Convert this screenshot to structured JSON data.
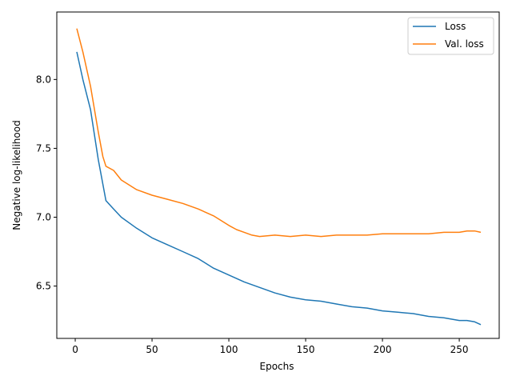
{
  "chart_data": {
    "type": "line",
    "title": "",
    "xlabel": "Epochs",
    "ylabel": "Negative log-likelihood",
    "xlim": [
      -12,
      276
    ],
    "ylim": [
      6.12,
      8.49
    ],
    "xticks": [
      0,
      50,
      100,
      150,
      200,
      250
    ],
    "xtick_labels": [
      "0",
      "50",
      "100",
      "150",
      "200",
      "250"
    ],
    "yticks": [
      6.5,
      7.0,
      7.5,
      8.0
    ],
    "ytick_labels": [
      "6.5",
      "7.0",
      "7.5",
      "8.0"
    ],
    "grid": false,
    "legend_position": "top-right",
    "series": [
      {
        "name": "Loss",
        "color": "#1f77b4",
        "x": [
          1,
          5,
          10,
          15,
          20,
          25,
          30,
          40,
          50,
          60,
          70,
          80,
          90,
          100,
          110,
          120,
          130,
          140,
          150,
          160,
          170,
          180,
          190,
          200,
          210,
          220,
          230,
          240,
          250,
          255,
          260,
          264
        ],
        "y": [
          8.2,
          8.0,
          7.78,
          7.42,
          7.12,
          7.06,
          7.0,
          6.92,
          6.85,
          6.8,
          6.75,
          6.7,
          6.63,
          6.58,
          6.53,
          6.49,
          6.45,
          6.42,
          6.4,
          6.39,
          6.37,
          6.35,
          6.34,
          6.32,
          6.31,
          6.3,
          6.28,
          6.27,
          6.25,
          6.25,
          6.24,
          6.22
        ]
      },
      {
        "name": "Val. loss",
        "color": "#ff7f0e",
        "x": [
          1,
          5,
          10,
          15,
          18,
          20,
          25,
          30,
          40,
          50,
          60,
          70,
          80,
          90,
          100,
          105,
          110,
          115,
          120,
          130,
          140,
          150,
          160,
          170,
          180,
          190,
          200,
          210,
          220,
          230,
          240,
          250,
          255,
          260,
          264
        ],
        "y": [
          8.37,
          8.2,
          7.95,
          7.62,
          7.44,
          7.37,
          7.34,
          7.27,
          7.2,
          7.16,
          7.13,
          7.1,
          7.06,
          7.01,
          6.94,
          6.91,
          6.89,
          6.87,
          6.86,
          6.87,
          6.86,
          6.87,
          6.86,
          6.87,
          6.87,
          6.87,
          6.88,
          6.88,
          6.88,
          6.88,
          6.89,
          6.89,
          6.9,
          6.9,
          6.89
        ]
      }
    ]
  }
}
